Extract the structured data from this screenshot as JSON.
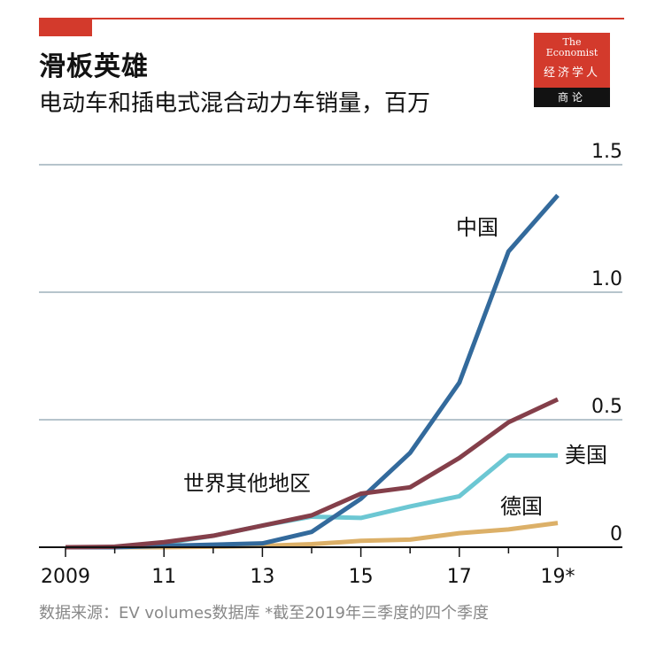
{
  "header": {
    "title": "滑板英雄",
    "subtitle": "电动车和插电式混合动力车销量，百万"
  },
  "logo": {
    "line1": "The",
    "line2": "Economist",
    "line3": "经济学人",
    "line4": "商论"
  },
  "colors": {
    "accent": "#d33a2c",
    "china": "#336a9c",
    "rest_of_world": "#843f4a",
    "usa": "#6cc7d3",
    "germany": "#dcb068",
    "grid": "#b6c4cc"
  },
  "chart_data": {
    "type": "line",
    "title": "滑板英雄",
    "subtitle": "电动车和插电式混合动力车销量，百万",
    "xlabel": "",
    "ylabel": "",
    "x": [
      2009,
      2010,
      2011,
      2012,
      2013,
      2014,
      2015,
      2016,
      2017,
      2018,
      2019
    ],
    "x_tick_values": [
      2009,
      2011,
      2013,
      2015,
      2017,
      2019
    ],
    "x_tick_labels": [
      "2009",
      "11",
      "13",
      "15",
      "17",
      "19*"
    ],
    "xlim": [
      2008.4,
      2020.3
    ],
    "ylim": [
      0,
      1.5
    ],
    "y_ticks": [
      0,
      0.5,
      1.0,
      1.5
    ],
    "y_tick_labels": [
      "0",
      "0.5",
      "1.0",
      "1.5"
    ],
    "grid": true,
    "y_axis_side": "right",
    "series": [
      {
        "name": "中国",
        "key": "china",
        "values": [
          0.0,
          0.0,
          0.005,
          0.01,
          0.015,
          0.06,
          0.19,
          0.37,
          0.645,
          1.16,
          1.38
        ]
      },
      {
        "name": "世界其他地区",
        "key": "rest_of_world",
        "values": [
          0.0,
          0.002,
          0.02,
          0.045,
          0.085,
          0.125,
          0.21,
          0.235,
          0.35,
          0.49,
          0.58
        ]
      },
      {
        "name": "美国",
        "key": "usa",
        "values": [
          0.0,
          0.0,
          0.015,
          0.045,
          0.085,
          0.12,
          0.115,
          0.16,
          0.2,
          0.36,
          0.36
        ]
      },
      {
        "name": "德国",
        "key": "germany",
        "values": [
          0.0,
          0.0,
          0.0,
          0.002,
          0.005,
          0.012,
          0.025,
          0.03,
          0.055,
          0.07,
          0.095
        ]
      }
    ]
  },
  "source": "数据来源：EV volumes数据库  *截至2019年三季度的四个季度"
}
